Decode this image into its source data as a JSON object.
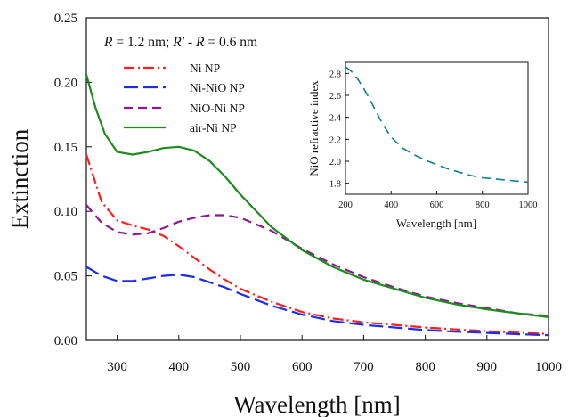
{
  "chart_data": [
    {
      "type": "line",
      "xlabel": "Wavelength [nm]",
      "ylabel": "Extinction",
      "xlim": [
        250,
        1000
      ],
      "ylim": [
        0,
        0.25
      ],
      "xticks": [
        "300",
        "400",
        "500",
        "600",
        "700",
        "800",
        "900",
        "1000"
      ],
      "xtick_values": [
        300,
        400,
        500,
        600,
        700,
        800,
        900,
        1000
      ],
      "yticks": [
        "0.00",
        "0.05",
        "0.10",
        "0.15",
        "0.20",
        "0.25"
      ],
      "ytick_values": [
        0,
        0.05,
        0.1,
        0.15,
        0.2,
        0.25
      ],
      "annotation": {
        "r_symbol": "R",
        "r_value": " = 1.2 nm; ",
        "r_prime_symbol": "R′",
        "r_minus": " - ",
        "r_symbol_2": "R",
        "r_diff_value": " = 0.6 nm"
      },
      "legend_position": "upper-left",
      "grid": false,
      "series": [
        {
          "name": "Ni NP",
          "color": "#ff1f1f",
          "style": "dash-dot",
          "x": [
            250,
            275,
            300,
            325,
            350,
            375,
            400,
            425,
            450,
            475,
            500,
            550,
            600,
            650,
            700,
            750,
            800,
            850,
            900,
            950,
            1000
          ],
          "y": [
            0.144,
            0.107,
            0.093,
            0.089,
            0.086,
            0.081,
            0.073,
            0.064,
            0.055,
            0.047,
            0.04,
            0.03,
            0.022,
            0.017,
            0.014,
            0.012,
            0.01,
            0.0085,
            0.0072,
            0.006,
            0.005
          ]
        },
        {
          "name": "Ni-NiO NP",
          "color": "#1a2ee8",
          "style": "long-dash",
          "x": [
            250,
            275,
            300,
            325,
            350,
            375,
            400,
            425,
            450,
            475,
            500,
            550,
            600,
            650,
            700,
            750,
            800,
            850,
            900,
            950,
            1000
          ],
          "y": [
            0.057,
            0.05,
            0.046,
            0.046,
            0.048,
            0.05,
            0.051,
            0.049,
            0.045,
            0.041,
            0.036,
            0.027,
            0.02,
            0.015,
            0.012,
            0.01,
            0.008,
            0.0068,
            0.0058,
            0.0048,
            0.004
          ]
        },
        {
          "name": "NiO-Ni NP",
          "color": "#8a1a8e",
          "style": "dash",
          "x": [
            250,
            275,
            300,
            325,
            350,
            375,
            400,
            425,
            450,
            475,
            500,
            550,
            600,
            650,
            700,
            750,
            800,
            850,
            900,
            950,
            1000
          ],
          "y": [
            0.105,
            0.091,
            0.084,
            0.082,
            0.083,
            0.087,
            0.092,
            0.095,
            0.097,
            0.097,
            0.095,
            0.085,
            0.071,
            0.059,
            0.049,
            0.041,
            0.034,
            0.029,
            0.025,
            0.021,
            0.019
          ]
        },
        {
          "name": "air-Ni NP",
          "color": "#1f8a1f",
          "style": "solid",
          "x": [
            250,
            265,
            280,
            300,
            325,
            350,
            375,
            400,
            425,
            450,
            475,
            500,
            550,
            600,
            650,
            700,
            750,
            800,
            850,
            900,
            950,
            1000
          ],
          "y": [
            0.206,
            0.18,
            0.16,
            0.146,
            0.144,
            0.146,
            0.149,
            0.15,
            0.147,
            0.139,
            0.127,
            0.113,
            0.088,
            0.07,
            0.057,
            0.047,
            0.04,
            0.033,
            0.028,
            0.024,
            0.021,
            0.018
          ]
        }
      ]
    },
    {
      "type": "line",
      "xlabel": "Wavelength [nm]",
      "ylabel": "NiO refractive index",
      "xlim": [
        200,
        1000
      ],
      "ylim": [
        1.7,
        2.9
      ],
      "xticks": [
        "200",
        "400",
        "600",
        "800",
        "1000"
      ],
      "xtick_values": [
        200,
        400,
        600,
        800,
        1000
      ],
      "yticks": [
        "1.8",
        "2.0",
        "2.2",
        "2.4",
        "2.6",
        "2.8"
      ],
      "ytick_values": [
        1.8,
        2.0,
        2.2,
        2.4,
        2.6,
        2.8
      ],
      "series": [
        {
          "color": "#137b8a",
          "style": "dash",
          "x": [
            200,
            225,
            250,
            275,
            300,
            325,
            350,
            375,
            400,
            450,
            500,
            550,
            600,
            650,
            700,
            750,
            800,
            850,
            900,
            950,
            1000
          ],
          "y": [
            2.86,
            2.82,
            2.76,
            2.68,
            2.59,
            2.49,
            2.39,
            2.3,
            2.22,
            2.12,
            2.06,
            2.01,
            1.97,
            1.93,
            1.9,
            1.87,
            1.85,
            1.84,
            1.83,
            1.82,
            1.81
          ]
        }
      ]
    }
  ]
}
